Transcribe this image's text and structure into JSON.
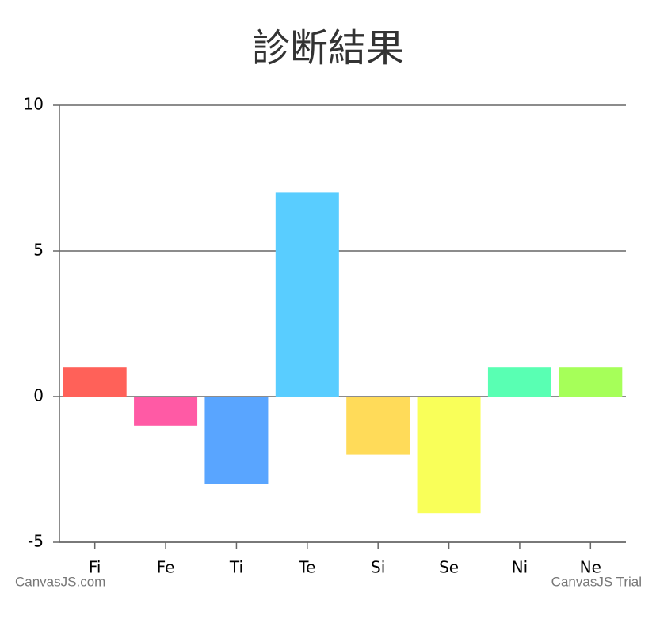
{
  "chart_data": {
    "type": "bar",
    "title": "診断結果",
    "categories": [
      "Fi",
      "Fe",
      "Ti",
      "Te",
      "Si",
      "Se",
      "Ni",
      "Ne"
    ],
    "values": [
      1,
      -1,
      -3,
      7,
      -2,
      -4,
      1,
      1
    ],
    "colors": [
      "#ff6159",
      "#ff5aa5",
      "#59a5ff",
      "#59cdff",
      "#ffdb59",
      "#f9ff59",
      "#59ffb3",
      "#a6ff59"
    ],
    "ylim": [
      -5,
      10
    ],
    "yticks": [
      -5,
      0,
      5,
      10
    ],
    "grid": true,
    "credits": [
      "CanvasJS.com",
      "CanvasJS Trial"
    ]
  }
}
